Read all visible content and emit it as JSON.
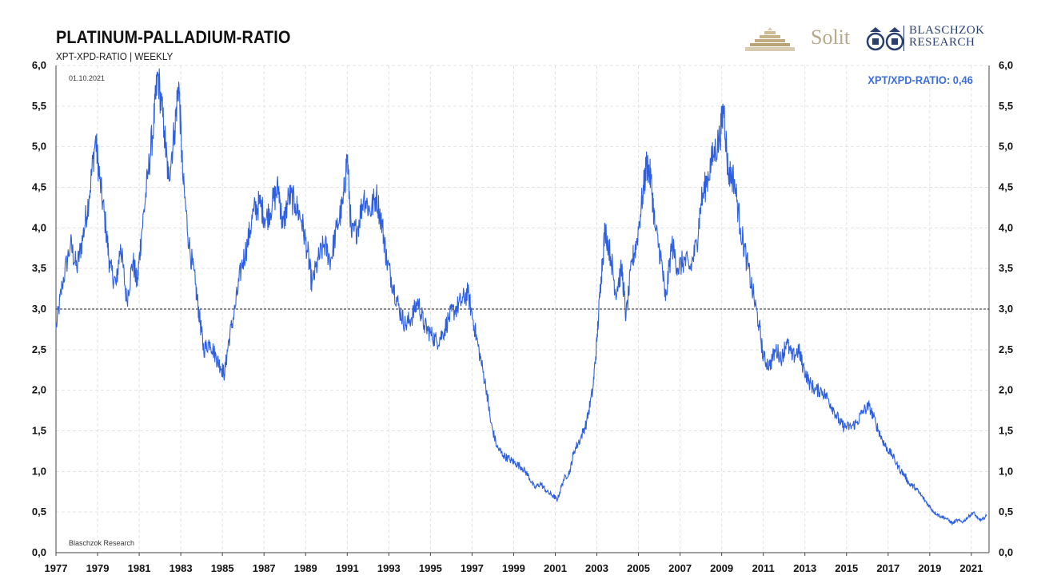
{
  "header": {
    "title": "PLATINUM-PALLADIUM-RATIO",
    "subtitle": "XPT-XPD-RATIO | WEEKLY",
    "date": "01.10.2021",
    "source": "Blaschzok  Research",
    "last_value_label": "XPT/XPD-RATIO: 0,46"
  },
  "logos": {
    "solit": "Solit",
    "blaschzok_line1": "BLASCHZOK",
    "blaschzok_line2": "RESEARCH"
  },
  "colors": {
    "series": "#2d5fe0",
    "label_accent": "#3b6fe0",
    "reference_line": "#222222",
    "grid": "#e3e3e3"
  },
  "chart_data": {
    "type": "line",
    "title": "PLATINUM-PALLADIUM-RATIO",
    "xlabel": "",
    "ylabel": "",
    "xlim": [
      1977,
      2021.85
    ],
    "ylim": [
      0,
      6
    ],
    "x_ticks": [
      "1977",
      "1979",
      "1981",
      "1983",
      "1985",
      "1987",
      "1989",
      "1991",
      "1993",
      "1995",
      "1997",
      "1999",
      "2001",
      "2003",
      "2005",
      "2007",
      "2009",
      "2011",
      "2013",
      "2015",
      "2017",
      "2019",
      "2021"
    ],
    "y_ticks": [
      "0,0",
      "0,5",
      "1,0",
      "1,5",
      "2,0",
      "2,5",
      "3,0",
      "3,5",
      "4,0",
      "4,5",
      "5,0",
      "5,5",
      "6,0"
    ],
    "y_tick_values": [
      0,
      0.5,
      1,
      1.5,
      2,
      2.5,
      3,
      3.5,
      4,
      4.5,
      5,
      5.5,
      6
    ],
    "grid": true,
    "reference_line": 3.0,
    "series": [
      {
        "name": "XPT/XPD-RATIO",
        "points": [
          [
            1977.0,
            2.75
          ],
          [
            1977.3,
            3.3
          ],
          [
            1977.7,
            3.8
          ],
          [
            1978.0,
            3.5
          ],
          [
            1978.3,
            3.9
          ],
          [
            1978.6,
            4.4
          ],
          [
            1978.9,
            5.1
          ],
          [
            1979.1,
            4.6
          ],
          [
            1979.4,
            4.0
          ],
          [
            1979.6,
            3.5
          ],
          [
            1979.9,
            3.3
          ],
          [
            1980.1,
            3.8
          ],
          [
            1980.4,
            3.1
          ],
          [
            1980.7,
            3.6
          ],
          [
            1980.9,
            3.3
          ],
          [
            1981.1,
            3.9
          ],
          [
            1981.4,
            4.6
          ],
          [
            1981.7,
            5.3
          ],
          [
            1981.9,
            5.9
          ],
          [
            1982.2,
            5.2
          ],
          [
            1982.4,
            4.6
          ],
          [
            1982.7,
            5.2
          ],
          [
            1982.9,
            5.8
          ],
          [
            1983.1,
            4.6
          ],
          [
            1983.4,
            3.8
          ],
          [
            1983.7,
            3.3
          ],
          [
            1983.9,
            2.9
          ],
          [
            1984.1,
            2.5
          ],
          [
            1984.4,
            2.6
          ],
          [
            1984.7,
            2.4
          ],
          [
            1984.9,
            2.3
          ],
          [
            1985.1,
            2.2
          ],
          [
            1985.3,
            2.6
          ],
          [
            1985.6,
            3.0
          ],
          [
            1985.9,
            3.5
          ],
          [
            1986.2,
            3.8
          ],
          [
            1986.5,
            4.2
          ],
          [
            1986.8,
            4.3
          ],
          [
            1987.1,
            4.1
          ],
          [
            1987.4,
            4.3
          ],
          [
            1987.7,
            4.5
          ],
          [
            1987.9,
            4.0
          ],
          [
            1988.2,
            4.4
          ],
          [
            1988.5,
            4.3
          ],
          [
            1988.8,
            4.1
          ],
          [
            1989.1,
            3.7
          ],
          [
            1989.3,
            3.3
          ],
          [
            1989.6,
            3.6
          ],
          [
            1989.9,
            3.8
          ],
          [
            1990.2,
            3.6
          ],
          [
            1990.5,
            4.0
          ],
          [
            1990.8,
            4.3
          ],
          [
            1991.0,
            4.9
          ],
          [
            1991.2,
            3.9
          ],
          [
            1991.5,
            4.0
          ],
          [
            1991.8,
            4.4
          ],
          [
            1992.1,
            4.2
          ],
          [
            1992.4,
            4.4
          ],
          [
            1992.7,
            4.0
          ],
          [
            1992.9,
            3.6
          ],
          [
            1993.2,
            3.3
          ],
          [
            1993.5,
            3.0
          ],
          [
            1993.8,
            2.8
          ],
          [
            1994.1,
            2.9
          ],
          [
            1994.4,
            3.1
          ],
          [
            1994.7,
            2.8
          ],
          [
            1995.0,
            2.7
          ],
          [
            1995.3,
            2.6
          ],
          [
            1995.6,
            2.7
          ],
          [
            1995.9,
            2.9
          ],
          [
            1996.2,
            3.0
          ],
          [
            1996.5,
            3.1
          ],
          [
            1996.8,
            3.2
          ],
          [
            1997.1,
            2.8
          ],
          [
            1997.4,
            2.4
          ],
          [
            1997.7,
            2.0
          ],
          [
            1997.9,
            1.6
          ],
          [
            1998.2,
            1.3
          ],
          [
            1998.5,
            1.2
          ],
          [
            1998.8,
            1.15
          ],
          [
            1999.1,
            1.1
          ],
          [
            1999.4,
            1.05
          ],
          [
            1999.7,
            0.95
          ],
          [
            2000.0,
            0.8
          ],
          [
            2000.3,
            0.85
          ],
          [
            2000.6,
            0.75
          ],
          [
            2000.9,
            0.7
          ],
          [
            2001.1,
            0.65
          ],
          [
            2001.4,
            0.9
          ],
          [
            2001.7,
            1.0
          ],
          [
            2001.9,
            1.25
          ],
          [
            2002.2,
            1.4
          ],
          [
            2002.5,
            1.6
          ],
          [
            2002.8,
            2.0
          ],
          [
            2003.0,
            2.6
          ],
          [
            2003.2,
            3.4
          ],
          [
            2003.4,
            4.0
          ],
          [
            2003.7,
            3.6
          ],
          [
            2003.9,
            3.2
          ],
          [
            2004.2,
            3.5
          ],
          [
            2004.4,
            2.9
          ],
          [
            2004.7,
            3.6
          ],
          [
            2004.9,
            3.8
          ],
          [
            2005.2,
            4.4
          ],
          [
            2005.4,
            4.8
          ],
          [
            2005.6,
            4.6
          ],
          [
            2005.8,
            4.0
          ],
          [
            2006.1,
            3.6
          ],
          [
            2006.3,
            3.1
          ],
          [
            2006.6,
            3.8
          ],
          [
            2006.9,
            3.5
          ],
          [
            2007.2,
            3.6
          ],
          [
            2007.5,
            3.5
          ],
          [
            2007.8,
            3.8
          ],
          [
            2008.0,
            4.3
          ],
          [
            2008.3,
            4.6
          ],
          [
            2008.6,
            4.9
          ],
          [
            2008.9,
            5.1
          ],
          [
            2009.1,
            5.5
          ],
          [
            2009.3,
            4.7
          ],
          [
            2009.6,
            4.6
          ],
          [
            2009.9,
            4.0
          ],
          [
            2010.2,
            3.6
          ],
          [
            2010.5,
            3.2
          ],
          [
            2010.8,
            2.8
          ],
          [
            2011.0,
            2.4
          ],
          [
            2011.3,
            2.3
          ],
          [
            2011.6,
            2.5
          ],
          [
            2011.9,
            2.4
          ],
          [
            2012.1,
            2.6
          ],
          [
            2012.4,
            2.4
          ],
          [
            2012.7,
            2.5
          ],
          [
            2012.9,
            2.3
          ],
          [
            2013.2,
            2.1
          ],
          [
            2013.5,
            2.0
          ],
          [
            2013.8,
            2.0
          ],
          [
            2014.1,
            1.9
          ],
          [
            2014.4,
            1.75
          ],
          [
            2014.7,
            1.6
          ],
          [
            2014.9,
            1.55
          ],
          [
            2015.2,
            1.55
          ],
          [
            2015.5,
            1.6
          ],
          [
            2015.8,
            1.75
          ],
          [
            2016.1,
            1.8
          ],
          [
            2016.4,
            1.6
          ],
          [
            2016.7,
            1.4
          ],
          [
            2016.9,
            1.3
          ],
          [
            2017.2,
            1.2
          ],
          [
            2017.5,
            1.05
          ],
          [
            2017.8,
            0.95
          ],
          [
            2018.0,
            0.85
          ],
          [
            2018.3,
            0.8
          ],
          [
            2018.6,
            0.7
          ],
          [
            2018.9,
            0.6
          ],
          [
            2019.2,
            0.5
          ],
          [
            2019.5,
            0.45
          ],
          [
            2019.8,
            0.42
          ],
          [
            2020.1,
            0.36
          ],
          [
            2020.3,
            0.4
          ],
          [
            2020.6,
            0.38
          ],
          [
            2020.9,
            0.45
          ],
          [
            2021.1,
            0.5
          ],
          [
            2021.3,
            0.42
          ],
          [
            2021.5,
            0.4
          ],
          [
            2021.75,
            0.46
          ]
        ]
      }
    ]
  }
}
